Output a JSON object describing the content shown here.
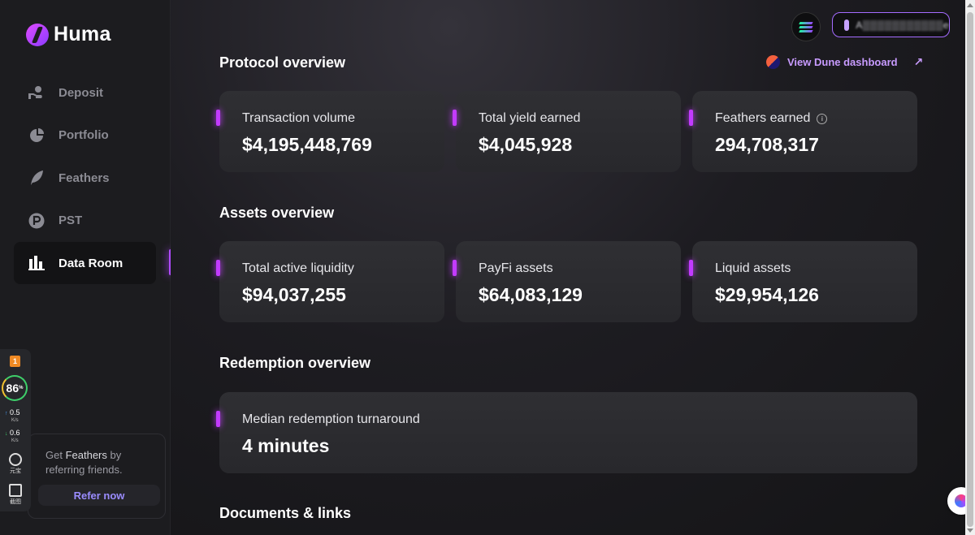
{
  "app": {
    "name": "Huma"
  },
  "sidebar": {
    "items": [
      {
        "label": "Deposit",
        "icon": "deposit-icon"
      },
      {
        "label": "Portfolio",
        "icon": "pie-chart-icon"
      },
      {
        "label": "Feathers",
        "icon": "feather-icon"
      },
      {
        "label": "PST",
        "icon": "pst-coin-icon"
      },
      {
        "label": "Data Room",
        "icon": "bar-chart-icon",
        "active": true
      }
    ],
    "refer": {
      "prefix": "Get ",
      "highlight": "Feathers",
      "suffix": " by referring friends.",
      "button": "Refer now"
    }
  },
  "header": {
    "wallet_address": "A▒▒▒▒▒▒▒▒▒▒▒e"
  },
  "widget": {
    "badge": "1",
    "percent": "86",
    "percent_unit": "%",
    "up_speed": "0.5",
    "down_speed": "0.6",
    "speed_unit": "K/s",
    "tool1": "元宝",
    "tool2": "截图"
  },
  "main": {
    "protocol": {
      "title": "Protocol overview",
      "dune_link": "View Dune dashboard",
      "cards": [
        {
          "label": "Transaction volume",
          "value": "$4,195,448,769"
        },
        {
          "label": "Total yield earned",
          "value": "$4,045,928"
        },
        {
          "label": "Feathers earned",
          "value": "294,708,317",
          "info": "i"
        }
      ]
    },
    "assets": {
      "title": "Assets overview",
      "cards": [
        {
          "label": "Total active liquidity",
          "value": "$94,037,255"
        },
        {
          "label": "PayFi assets",
          "value": "$64,083,129"
        },
        {
          "label": "Liquid assets",
          "value": "$29,954,126"
        }
      ]
    },
    "redemption": {
      "title": "Redemption overview",
      "card": {
        "label": "Median redemption turnaround",
        "value": "4 minutes"
      }
    },
    "documents": {
      "title": "Documents & links"
    }
  },
  "colors": {
    "accent": "#c23bff",
    "link": "#c89bff",
    "background": "#141416"
  }
}
